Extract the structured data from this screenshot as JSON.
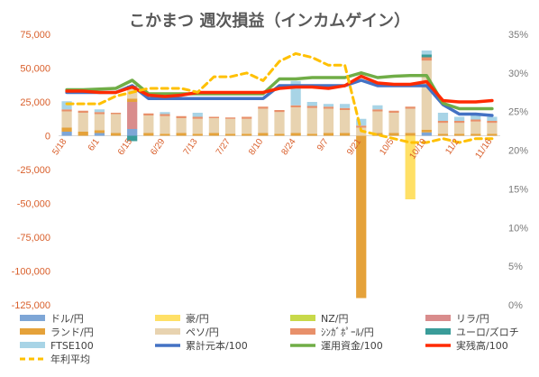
{
  "chart_data": {
    "type": "bar",
    "title": "こかまつ 週次損益（インカムゲイン）",
    "x_labels": [
      "5/18",
      "6/1",
      "6/15",
      "6/29",
      "7/13",
      "7/27",
      "8/10",
      "8/24",
      "9/7",
      "9/21",
      "10/5",
      "10/19",
      "11/2",
      "11/16"
    ],
    "left_axis": {
      "min": -125000,
      "max": 75000,
      "step": 25000,
      "tick_labels": [
        "75,000",
        "50,000",
        "25,000",
        "0",
        "-25,000",
        "-50,000",
        "-75,000",
        "-100,000",
        "-125,000"
      ]
    },
    "right_axis": {
      "min": 0,
      "max": 35,
      "step": 5,
      "tick_labels": [
        "35%",
        "30%",
        "25%",
        "20%",
        "15%",
        "10%",
        "5%",
        "0%"
      ]
    },
    "week_count": 27,
    "series": [
      {
        "name": "ドル/円",
        "type": "bar",
        "color": "#7ea6d6",
        "values": [
          3000,
          0,
          2000,
          0,
          5000,
          0,
          0,
          0,
          0,
          0,
          0,
          0,
          0,
          0,
          0,
          0,
          0,
          0,
          0,
          0,
          0,
          0,
          2500,
          0,
          0,
          0,
          0
        ]
      },
      {
        "name": "豪/円",
        "type": "bar",
        "color": "#ffe066",
        "values": [
          0,
          0,
          0,
          0,
          0,
          0,
          0,
          0,
          0,
          0,
          0,
          0,
          0,
          0,
          0,
          0,
          0,
          0,
          0,
          0,
          0,
          -47000,
          0,
          0,
          0,
          0,
          0
        ]
      },
      {
        "name": "NZ/円",
        "type": "bar",
        "color": "#c8d94a",
        "values": [
          0,
          0,
          0,
          0,
          0,
          0,
          0,
          0,
          0,
          0,
          0,
          0,
          0,
          0,
          0,
          0,
          0,
          0,
          0,
          0,
          0,
          0,
          0,
          0,
          0,
          0,
          0
        ]
      },
      {
        "name": "リラ/円",
        "type": "bar",
        "color": "#d98c8c",
        "values": [
          0,
          0,
          0,
          0,
          20000,
          0,
          0,
          0,
          0,
          0,
          0,
          0,
          0,
          0,
          0,
          0,
          0,
          0,
          0,
          0,
          0,
          0,
          0,
          0,
          0,
          0,
          0
        ]
      },
      {
        "name": "ランド/円",
        "type": "bar",
        "color": "#e5a23a",
        "values": [
          3000,
          3000,
          2000,
          2000,
          2500,
          2000,
          1500,
          2000,
          1500,
          2000,
          1500,
          1500,
          2000,
          1500,
          2000,
          1500,
          2000,
          2000,
          -120000,
          2000,
          2000,
          2000,
          2000,
          1500,
          1500,
          1500,
          1500
        ]
      },
      {
        "name": "ペソ/円",
        "type": "bar",
        "color": "#e8d3b0",
        "values": [
          12000,
          14000,
          12000,
          14000,
          8000,
          13000,
          13000,
          11000,
          11000,
          11000,
          11000,
          11000,
          18000,
          16000,
          19000,
          19000,
          18000,
          17000,
          6000,
          16000,
          15000,
          18000,
          51000,
          8000,
          8000,
          9000,
          8000
        ]
      },
      {
        "name": "ｼﾝｶﾞﾎﾟｰﾙ/円",
        "type": "bar",
        "color": "#e8906a",
        "values": [
          1500,
          1500,
          1500,
          1000,
          1500,
          1500,
          1500,
          1500,
          1500,
          1000,
          1000,
          1500,
          1500,
          1500,
          1500,
          1500,
          1500,
          1500,
          1500,
          1500,
          1500,
          1500,
          2500,
          1500,
          1500,
          1500,
          1500
        ]
      },
      {
        "name": "ユーロ/ズロチ",
        "type": "bar",
        "color": "#3a9c99",
        "values": [
          0,
          0,
          0,
          0,
          -4000,
          0,
          0,
          0,
          0,
          0,
          0,
          0,
          0,
          0,
          0,
          0,
          0,
          0,
          0,
          0,
          0,
          0,
          2000,
          0,
          0,
          0,
          0
        ]
      },
      {
        "name": "FTSE100",
        "type": "bar",
        "color": "#a8d4e6",
        "values": [
          6000,
          0,
          2000,
          0,
          0,
          0,
          1500,
          0,
          3000,
          0,
          0,
          0,
          0,
          0,
          18000,
          3000,
          2000,
          3000,
          5000,
          3000,
          0,
          0,
          3000,
          6000,
          3000,
          3000,
          3000
        ]
      },
      {
        "name": "累計元本/100",
        "type": "line",
        "axis": "left",
        "color": "#4472c4",
        "width": 3.5,
        "values": [
          32000,
          32000,
          32000,
          32000,
          37000,
          27500,
          27500,
          27500,
          27500,
          27500,
          27500,
          27500,
          27500,
          37000,
          37000,
          37000,
          37000,
          37000,
          41000,
          37000,
          37000,
          37000,
          37000,
          23000,
          16000,
          16000,
          15000
        ]
      },
      {
        "name": "運用資金/100",
        "type": "line",
        "axis": "left",
        "color": "#70ad47",
        "width": 3.5,
        "values": [
          34000,
          34000,
          34500,
          35000,
          41000,
          31000,
          31000,
          31000,
          31000,
          31000,
          31000,
          31000,
          31000,
          42000,
          42000,
          43000,
          43000,
          43000,
          46500,
          43000,
          44000,
          44500,
          44500,
          24000,
          20000,
          20000,
          20000
        ]
      },
      {
        "name": "実残高/100",
        "type": "line",
        "axis": "left",
        "color": "#ff2a00",
        "width": 3.5,
        "values": [
          33000,
          33000,
          32000,
          32000,
          36000,
          30000,
          29000,
          30000,
          32000,
          32000,
          32000,
          32000,
          32000,
          35000,
          36000,
          36000,
          35000,
          37000,
          44000,
          39000,
          38000,
          38000,
          40000,
          26000,
          25000,
          25000,
          26000
        ]
      },
      {
        "name": "年利平均",
        "type": "line",
        "axis": "right",
        "color": "#ffc000",
        "width": 3,
        "dash": true,
        "values": [
          26,
          26,
          26,
          27,
          27.5,
          28,
          28,
          28,
          27.5,
          29.5,
          29.5,
          30,
          29,
          31.5,
          32.5,
          32,
          31,
          31,
          22.5,
          22,
          21.5,
          21,
          21,
          21.5,
          21,
          21.5,
          21.5
        ]
      }
    ],
    "legend_position": "bottom",
    "grid": false
  }
}
